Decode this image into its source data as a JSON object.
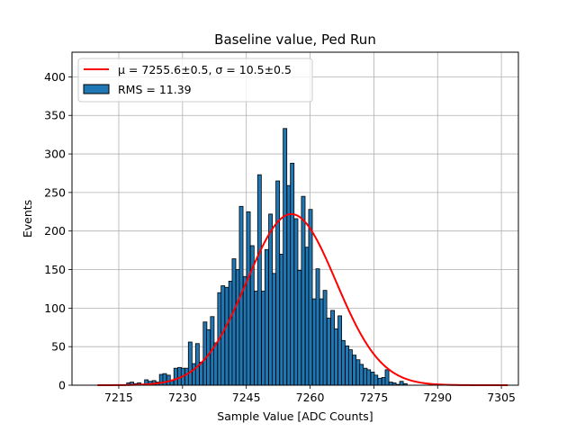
{
  "chart_data": {
    "type": "bar",
    "title": "Baseline value, Ped Run",
    "xlabel": "Sample Value [ADC Counts]",
    "ylabel": "Events",
    "xlim": [
      7204,
      7309
    ],
    "ylim": [
      0,
      432
    ],
    "xticks": [
      7215,
      7230,
      7245,
      7260,
      7275,
      7290,
      7305
    ],
    "yticks": [
      0,
      50,
      100,
      150,
      200,
      250,
      300,
      350,
      400
    ],
    "grid": true,
    "legend_position": "top-left",
    "bar_color": "#1f77b4",
    "fit_color": "#ff0000",
    "bin_width": 0.86,
    "hist_x": [
      7210.4,
      7211.3,
      7212.1,
      7213.0,
      7213.8,
      7214.7,
      7215.5,
      7216.4,
      7217.3,
      7218.1,
      7219.0,
      7219.8,
      7220.7,
      7221.5,
      7222.4,
      7223.3,
      7224.1,
      7225.0,
      7225.8,
      7226.7,
      7227.5,
      7228.4,
      7229.3,
      7230.1,
      7231.0,
      7231.8,
      7232.7,
      7233.5,
      7234.4,
      7235.3,
      7236.1,
      7237.0,
      7237.8,
      7238.7,
      7239.5,
      7240.4,
      7241.3,
      7242.1,
      7243.0,
      7243.8,
      7244.7,
      7245.5,
      7246.4,
      7247.3,
      7248.1,
      7249.0,
      7249.8,
      7250.7,
      7251.5,
      7252.4,
      7253.3,
      7254.1,
      7255.0,
      7255.8,
      7256.7,
      7257.5,
      7258.4,
      7259.3,
      7260.1,
      7261.0,
      7261.8,
      7262.7,
      7263.5,
      7264.4,
      7265.3,
      7266.1,
      7267.0,
      7267.8,
      7268.7,
      7269.5,
      7270.4,
      7271.3,
      7272.1,
      7273.0,
      7273.8,
      7274.7,
      7275.5,
      7276.4,
      7277.3,
      7278.1,
      7279.0,
      7279.8,
      7280.7,
      7281.5,
      7282.4,
      7283.3,
      7284.1,
      7285.0,
      7285.8,
      7286.7,
      7287.5,
      7288.4,
      7289.3,
      7290.1,
      7291.0,
      7291.8,
      7292.7,
      7293.5,
      7294.4,
      7295.3,
      7296.1,
      7297.0,
      7297.8,
      7298.7,
      7299.5,
      7300.4,
      7301.3,
      7302.1,
      7303.0,
      7303.8,
      7304.7,
      7305.5,
      7306.4
    ],
    "hist_y": [
      0,
      0,
      0,
      0,
      0,
      0,
      0,
      0,
      3,
      4,
      2,
      3,
      0,
      7,
      5,
      6,
      4,
      14,
      15,
      13,
      6,
      22,
      23,
      22,
      22,
      56,
      28,
      54,
      30,
      82,
      72,
      89,
      55,
      120,
      129,
      127,
      135,
      164,
      150,
      232,
      141,
      225,
      181,
      122,
      273,
      122,
      176,
      222,
      145,
      265,
      170,
      333,
      259,
      288,
      216,
      149,
      245,
      179,
      228,
      112,
      151,
      112,
      123,
      87,
      97,
      73,
      90,
      58,
      51,
      46,
      39,
      33,
      27,
      22,
      20,
      17,
      13,
      9,
      10,
      20,
      4,
      3,
      1,
      5,
      2,
      0,
      0,
      0,
      0,
      0,
      0,
      0,
      0,
      0,
      0,
      0,
      0,
      0,
      0,
      0,
      0,
      0,
      0,
      0,
      0,
      0,
      0,
      0,
      0,
      0,
      0,
      0,
      0
    ],
    "fit": {
      "mu": 7255.6,
      "sigma": 10.5,
      "amplitude": 222,
      "x_range": [
        7210.0,
        7306.5
      ]
    },
    "legend": [
      {
        "label_fit": "μ = 7255.6±0.5, σ = 10.5±0.5"
      },
      {
        "label_hist": "RMS = 11.39"
      }
    ]
  }
}
